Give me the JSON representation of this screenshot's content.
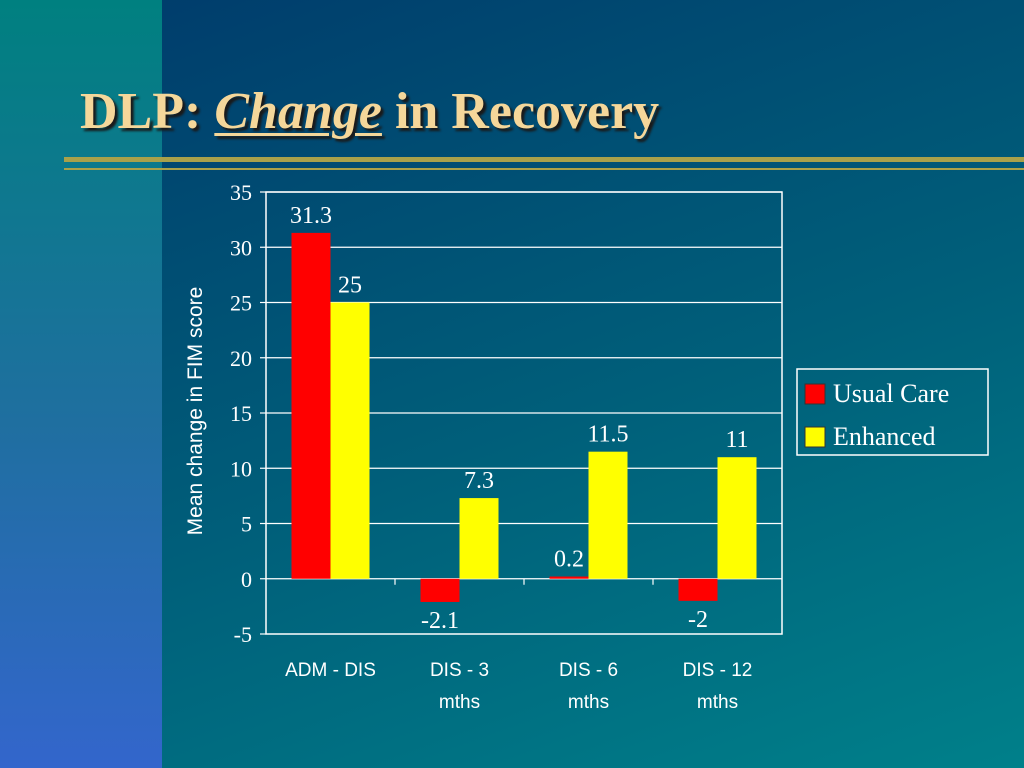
{
  "slide": {
    "title_prefix": "DLP: ",
    "title_emphasis": "Change",
    "title_suffix": " in Recovery"
  },
  "colors": {
    "usual_care": "#ff0000",
    "enhanced": "#ffff00",
    "title": "#f5d79a",
    "rule": "#a9a14a"
  },
  "chart_data": {
    "type": "bar",
    "categories": [
      [
        "ADM - DIS"
      ],
      [
        "DIS - 3",
        "mths"
      ],
      [
        "DIS - 6",
        "mths"
      ],
      [
        "DIS - 12",
        "mths"
      ]
    ],
    "series": [
      {
        "name": "Usual Care",
        "values": [
          31.3,
          -2.1,
          0.2,
          -2
        ],
        "labels": [
          "31.3",
          "-2.1",
          "0.2",
          "-2"
        ]
      },
      {
        "name": "Enhanced",
        "values": [
          25,
          7.3,
          11.5,
          11
        ],
        "labels": [
          "25",
          "7.3",
          "11.5",
          "11"
        ]
      }
    ],
    "ylabel": "Mean change in FIM score",
    "ylim": [
      -5,
      35
    ],
    "yticks": [
      35,
      30,
      25,
      20,
      15,
      10,
      5,
      0,
      -5
    ],
    "grid": true,
    "legend_position": "right"
  }
}
